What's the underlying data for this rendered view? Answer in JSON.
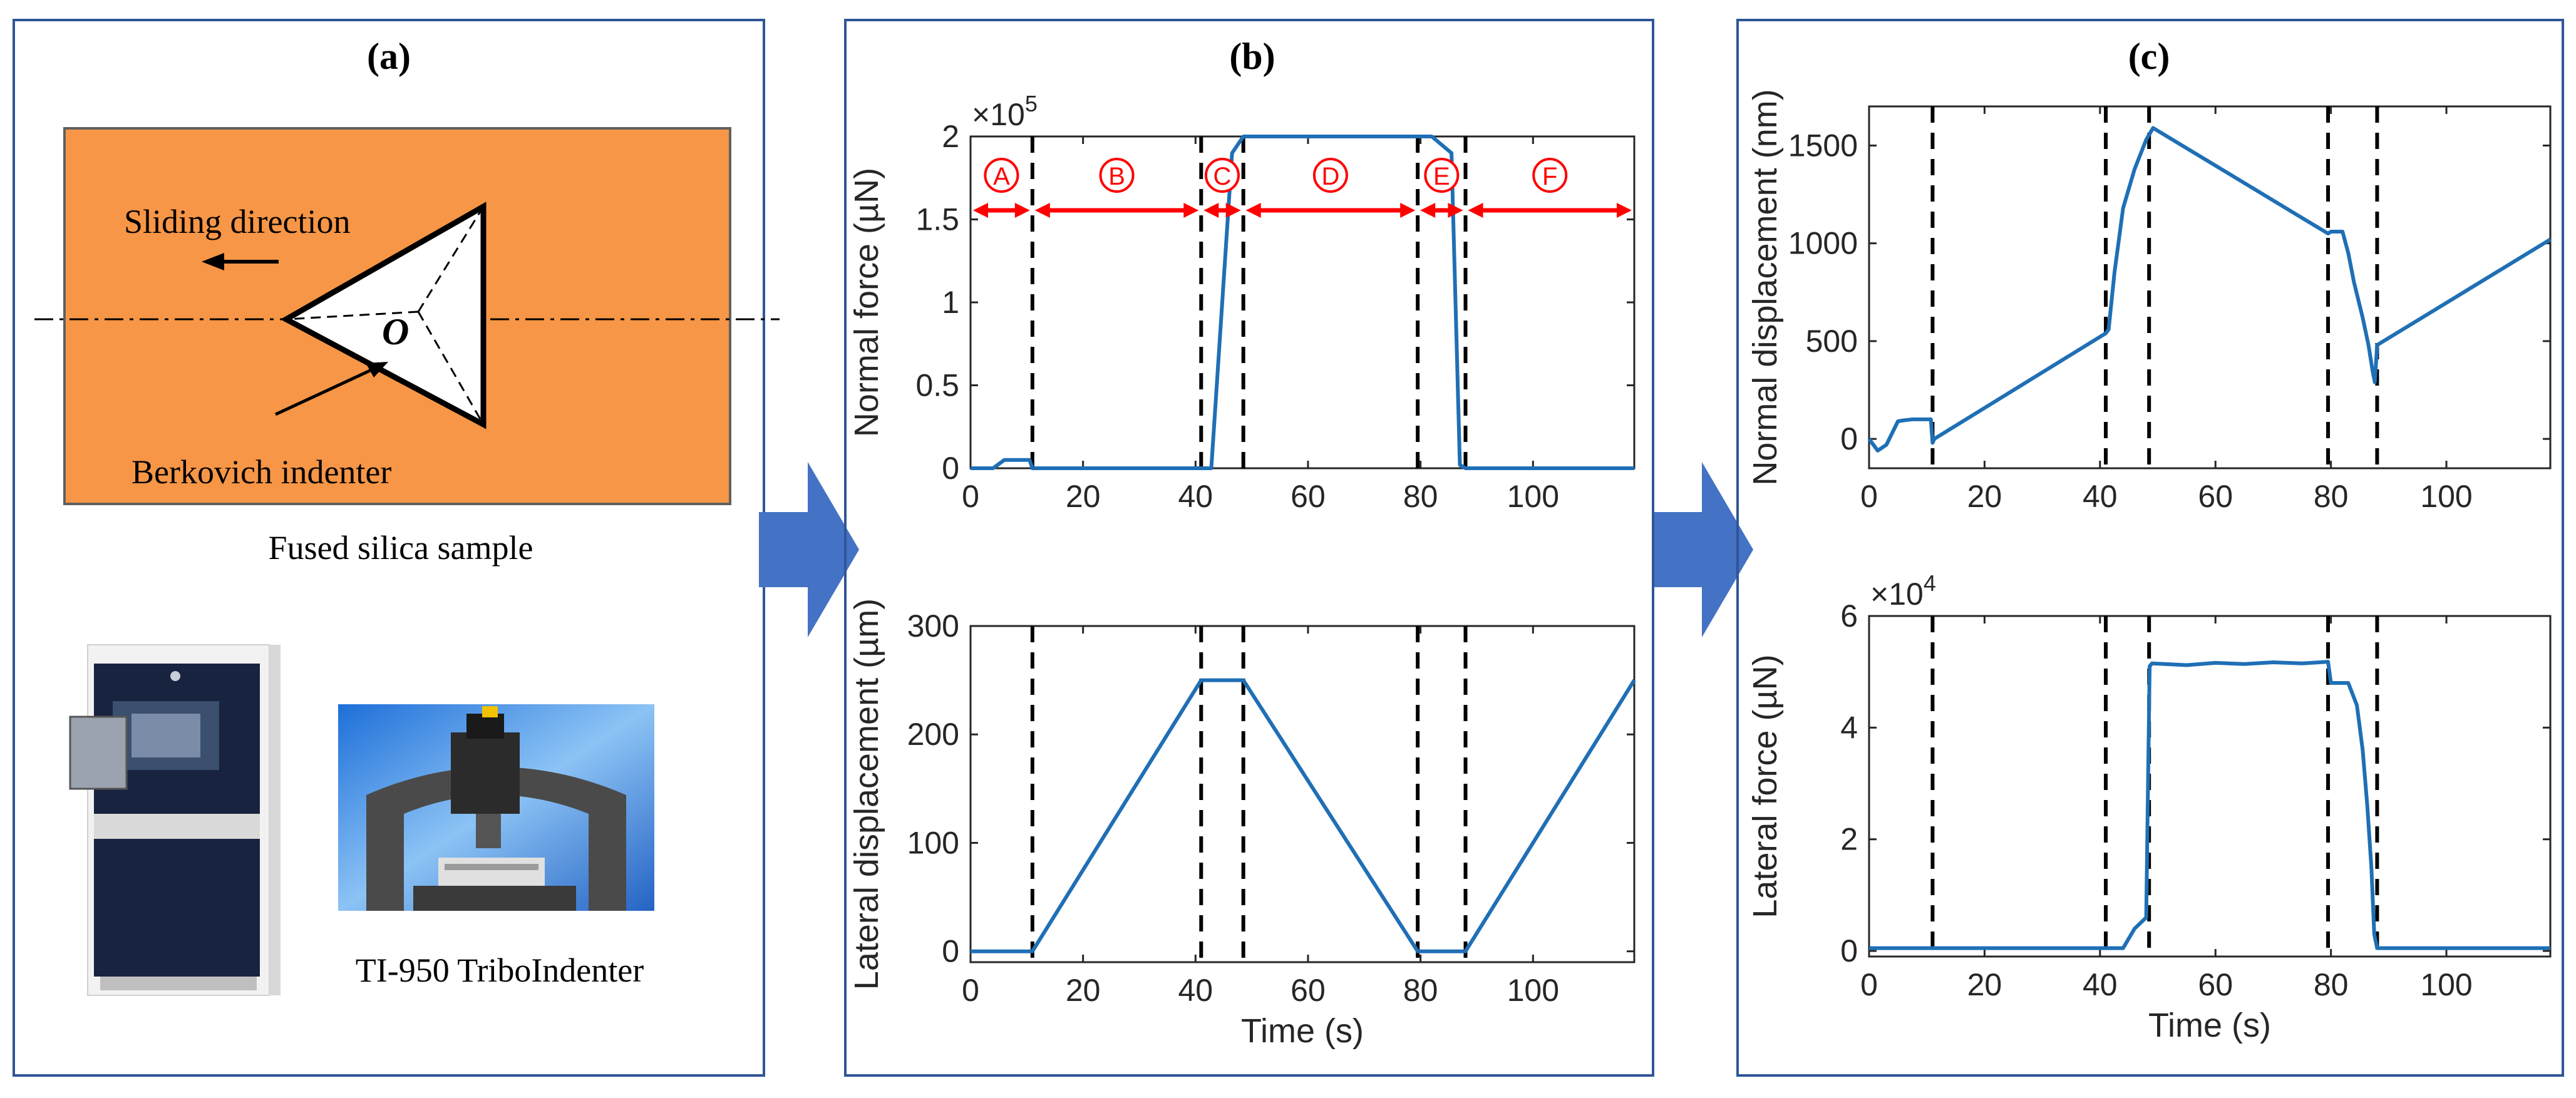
{
  "panels": {
    "a": {
      "label": "(a)",
      "sliding_direction": "Sliding direction",
      "origin_label": "O",
      "indenter_label": "Berkovich indenter",
      "sample_label": "Fused silica sample",
      "instrument_label": "TI-950 TriboIndenter",
      "sample_color": "#F79646"
    },
    "b": {
      "label": "(b)"
    },
    "c": {
      "label": "(c)"
    }
  },
  "phases": [
    "A",
    "B",
    "C",
    "D",
    "E",
    "F"
  ],
  "colors": {
    "line": "#1F6FB5",
    "arrow": "#4472C4",
    "phase": "#FF0000",
    "frame": "#2F5597",
    "sample": "#F79646"
  },
  "chart_data": [
    {
      "type": "line",
      "id": "normal_force",
      "panel": "b",
      "xlabel": "",
      "ylabel": "Normal force (µN)",
      "exponent": "×10",
      "exponent_power": "5",
      "xlim": [
        0,
        118
      ],
      "ylim": [
        0,
        2
      ],
      "xticks": [
        0,
        20,
        40,
        60,
        80,
        100
      ],
      "yticks": [
        0,
        0.5,
        1,
        1.5,
        2
      ],
      "ytick_labels": [
        "0",
        "0.5",
        "1",
        "1.5",
        "2"
      ],
      "vlines": [
        11,
        41,
        48.5,
        79.5,
        88
      ],
      "phase_arrows": [
        {
          "label": "A",
          "from": 0,
          "to": 11
        },
        {
          "label": "B",
          "from": 11,
          "to": 41
        },
        {
          "label": "C",
          "from": 41,
          "to": 48.5
        },
        {
          "label": "D",
          "from": 48.5,
          "to": 79.5
        },
        {
          "label": "E",
          "from": 79.5,
          "to": 88
        },
        {
          "label": "F",
          "from": 88,
          "to": 118
        }
      ],
      "x": [
        0,
        4,
        6,
        10.5,
        11,
        41,
        42.8,
        46.5,
        48.5,
        82,
        85.5,
        87,
        88,
        118
      ],
      "y": [
        0,
        0,
        0.05,
        0.05,
        0,
        0,
        0,
        1.9,
        2,
        2,
        1.9,
        0.02,
        0,
        0
      ]
    },
    {
      "type": "line",
      "id": "lateral_displacement",
      "panel": "b",
      "xlabel": "Time (s)",
      "ylabel": "Lateral displacement (µm)",
      "xlim": [
        0,
        118
      ],
      "ylim": [
        -10,
        300
      ],
      "xticks": [
        0,
        20,
        40,
        60,
        80,
        100
      ],
      "yticks": [
        0,
        100,
        200,
        300
      ],
      "ytick_labels": [
        "0",
        "100",
        "200",
        "300"
      ],
      "vlines": [
        11,
        41,
        48.5,
        79.5,
        88
      ],
      "x": [
        0,
        11,
        41,
        48.5,
        79.5,
        88,
        118
      ],
      "y": [
        0,
        0,
        250,
        250,
        0,
        0,
        250
      ]
    },
    {
      "type": "line",
      "id": "normal_displacement",
      "panel": "c",
      "xlabel": "",
      "ylabel": "Normal displacement (nm)",
      "xlim": [
        0,
        118
      ],
      "ylim": [
        -150,
        1700
      ],
      "xticks": [
        0,
        20,
        40,
        60,
        80,
        100
      ],
      "yticks": [
        0,
        500,
        1000,
        1500
      ],
      "ytick_labels": [
        "0",
        "500",
        "1000",
        "1500"
      ],
      "vlines": [
        11,
        41,
        48.5,
        79.5,
        88
      ],
      "x": [
        0,
        1.5,
        3,
        5,
        6,
        7.5,
        10.7,
        11,
        11.3,
        41,
        41.5,
        42.5,
        44,
        46,
        48,
        49.2,
        79.5,
        80,
        82,
        83,
        84,
        85.5,
        86.5,
        87.2,
        87.6,
        88,
        118
      ],
      "y": [
        0,
        -60,
        -30,
        90,
        95,
        100,
        100,
        -20,
        0,
        540,
        560,
        850,
        1180,
        1380,
        1530,
        1590,
        1050,
        1060,
        1060,
        950,
        800,
        620,
        480,
        350,
        290,
        480,
        1020
      ]
    },
    {
      "type": "line",
      "id": "lateral_force",
      "panel": "c",
      "xlabel": "Time (s)",
      "ylabel": "Lateral force (µN)",
      "exponent": "×10",
      "exponent_power": "4",
      "xlim": [
        0,
        118
      ],
      "ylim": [
        -0.1,
        6
      ],
      "xticks": [
        0,
        20,
        40,
        60,
        80,
        100
      ],
      "yticks": [
        0,
        2,
        4,
        6
      ],
      "ytick_labels": [
        "0",
        "2",
        "4",
        "6"
      ],
      "vlines": [
        11,
        41,
        48.5,
        79.5,
        88
      ],
      "x": [
        0,
        41,
        44,
        46,
        48,
        48.6,
        49,
        55,
        60,
        65,
        70,
        75,
        79.5,
        80,
        83,
        84.5,
        85.5,
        86.3,
        87,
        87.5,
        88,
        118
      ],
      "y": [
        0.05,
        0.05,
        0.05,
        0.4,
        0.6,
        5.1,
        5.15,
        5.12,
        5.16,
        5.14,
        5.17,
        5.15,
        5.18,
        4.8,
        4.8,
        4.4,
        3.6,
        2.6,
        1.5,
        0.3,
        0.05,
        0.05
      ]
    }
  ]
}
